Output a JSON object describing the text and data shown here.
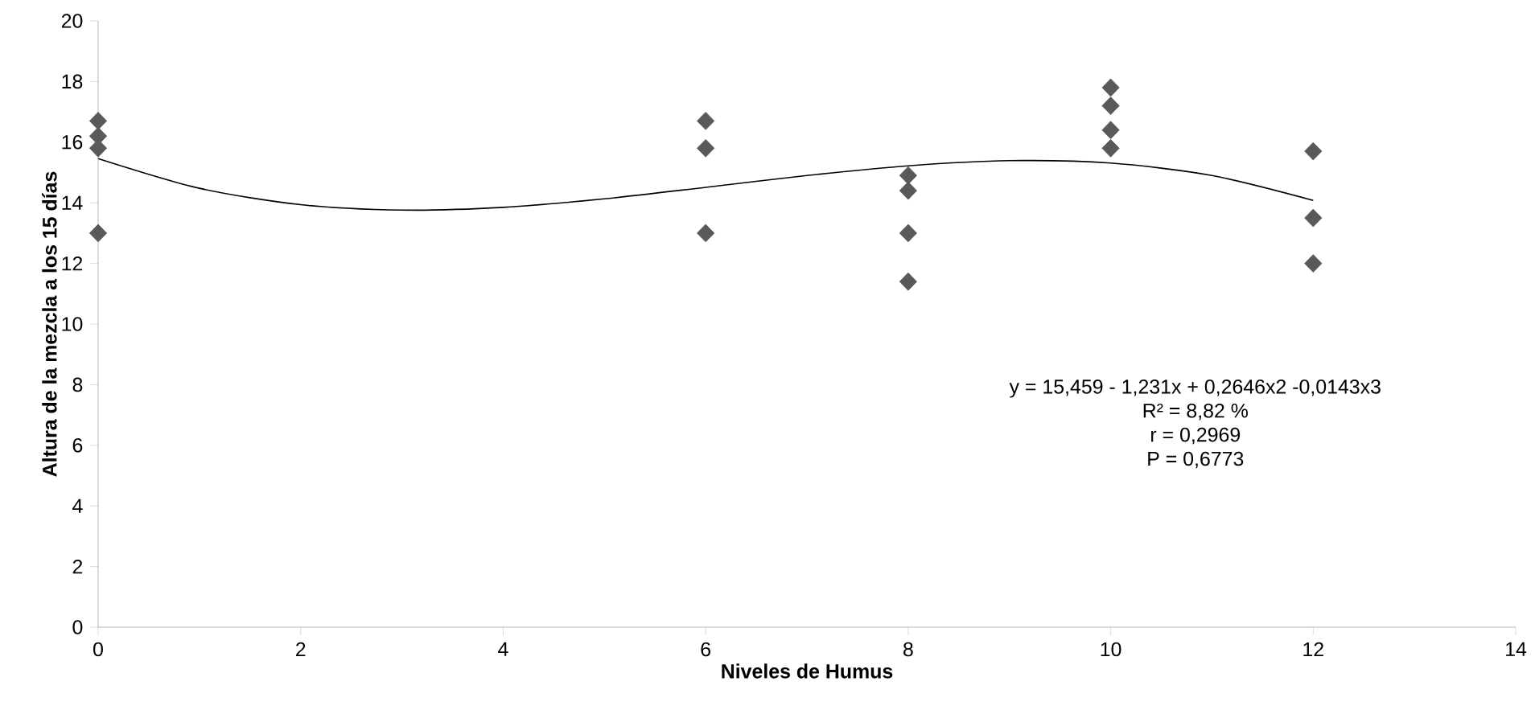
{
  "chart_data": {
    "type": "scatter",
    "xlabel": "Niveles de Humus",
    "ylabel": "Altura de la mezcla a los 15 días",
    "xlim": [
      0,
      14
    ],
    "xticks": [
      0,
      2,
      4,
      6,
      8,
      10,
      12,
      14
    ],
    "ylim": [
      0,
      20
    ],
    "yticks": [
      0,
      2,
      4,
      6,
      8,
      10,
      12,
      14,
      16,
      18,
      20
    ],
    "grid": false,
    "marker": "diamond",
    "series": [
      {
        "color": "#595959",
        "x": [
          0,
          0,
          0,
          0,
          6,
          6,
          6,
          8,
          8,
          8,
          8,
          10,
          10,
          10,
          10,
          12,
          12,
          12
        ],
        "values": [
          16.7,
          16.2,
          15.8,
          13.0,
          16.7,
          15.8,
          13.0,
          14.9,
          14.4,
          13.0,
          11.4,
          17.8,
          17.2,
          16.4,
          15.8,
          15.7,
          13.5,
          12.0
        ]
      },
      {
        "type": "line",
        "color": "#000000",
        "marker": "none",
        "x": [
          0,
          1,
          2,
          3,
          4,
          5,
          6,
          7,
          8,
          9,
          10,
          11,
          12
        ],
        "values": [
          15.46,
          14.48,
          13.94,
          13.76,
          13.85,
          14.13,
          14.51,
          14.9,
          15.22,
          15.39,
          15.31,
          14.9,
          14.08
        ]
      }
    ],
    "annotations": [
      "y = 15,459 - 1,231x + 0,2646x2  -0,0143x3",
      "R² = 8,82 %",
      "r = 0,2969",
      "P = 0,6773"
    ]
  }
}
